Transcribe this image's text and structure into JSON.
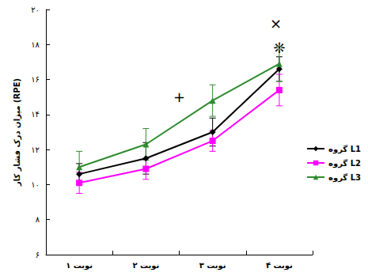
{
  "chart_data": {
    "type": "line",
    "y_label": "میزان درک فشار کار (RPE)",
    "categories": [
      "نوبت ۱",
      "نوبت ۲",
      "نوبت ۳",
      "نوبت ۴"
    ],
    "series": [
      {
        "name": "گروه L1",
        "color": "#000000",
        "marker": "diamond",
        "values": [
          10.6,
          11.5,
          13.0,
          16.6
        ],
        "errors": [
          0.6,
          0.9,
          0.8,
          0.7
        ]
      },
      {
        "name": "گروه L2",
        "color": "#ff00ff",
        "marker": "square",
        "values": [
          10.1,
          10.9,
          12.5,
          15.4
        ],
        "errors": [
          0.6,
          0.6,
          0.6,
          0.9
        ]
      },
      {
        "name": "گروه L3",
        "color": "#2e8b2e",
        "marker": "triangle",
        "values": [
          11.0,
          12.3,
          14.8,
          16.9
        ],
        "errors": [
          0.9,
          0.9,
          0.9,
          1.0
        ]
      }
    ],
    "ylim": [
      6,
      20
    ],
    "yticks": [
      {
        "value": 6,
        "label": "۶"
      },
      {
        "value": 8,
        "label": "۸"
      },
      {
        "value": 10,
        "label": "۱۰"
      },
      {
        "value": 12,
        "label": "۱۲"
      },
      {
        "value": 14,
        "label": "۱۴"
      },
      {
        "value": 16,
        "label": "۱۶"
      },
      {
        "value": 18,
        "label": "۱۸"
      },
      {
        "value": 20,
        "label": "۲۰"
      }
    ],
    "grid": false,
    "legend": "right",
    "annotations": [
      {
        "text": "+",
        "x": 1.5,
        "y": 15.0
      },
      {
        "text": "×",
        "x": 2.95,
        "y": 19.2
      },
      {
        "text": "❊",
        "x": 3.0,
        "y": 17.8
      }
    ]
  }
}
